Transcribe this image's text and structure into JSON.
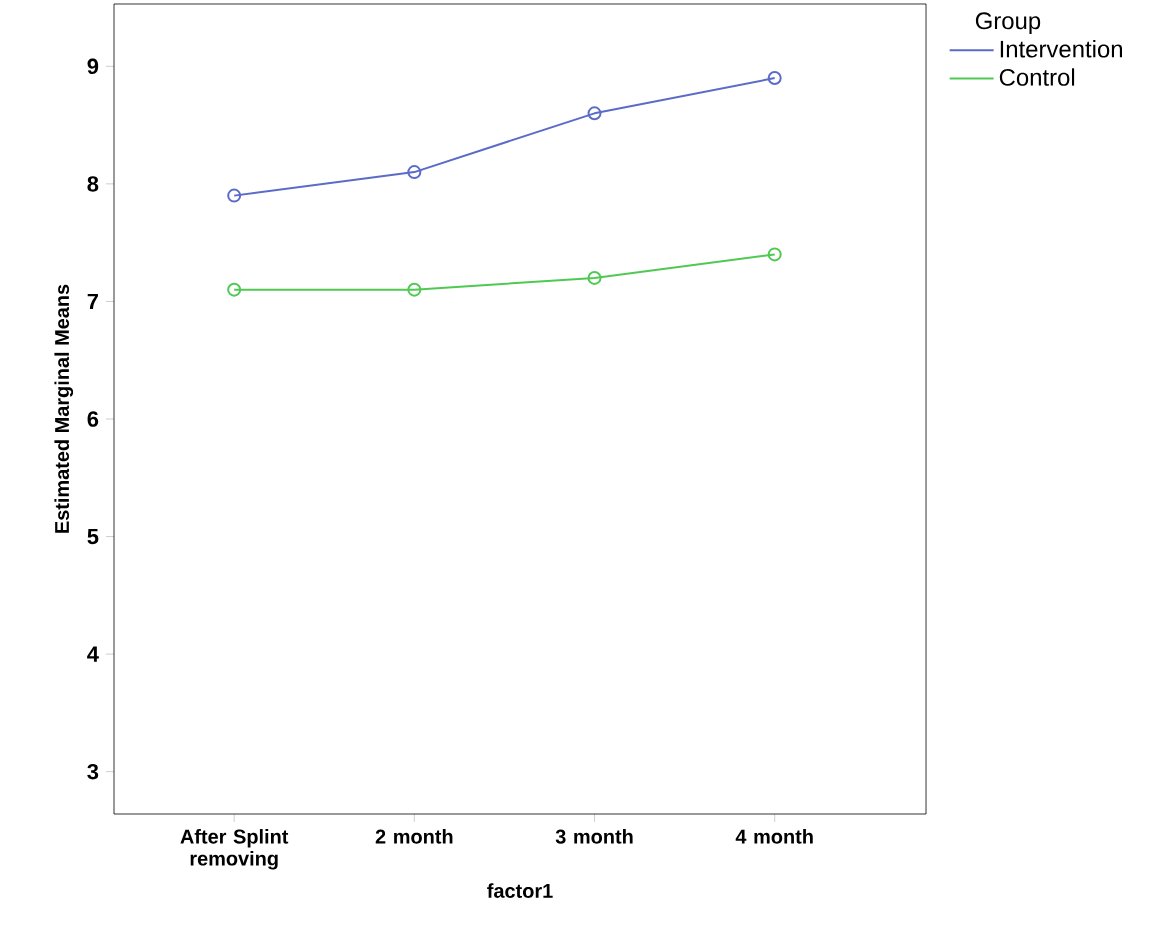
{
  "chart_data": {
    "type": "line",
    "xlabel": "factor1",
    "ylabel": "Estimated Marginal Means",
    "legend_title": "Group",
    "categories": [
      "After Splint removing",
      "2 month",
      "3 month",
      "4 month"
    ],
    "series": [
      {
        "name": "Intervention",
        "color": "#5a6bc8",
        "values": [
          7.9,
          8.1,
          8.6,
          8.9
        ]
      },
      {
        "name": "Control",
        "color": "#4fc952",
        "values": [
          7.1,
          7.1,
          7.2,
          7.4
        ]
      }
    ],
    "ylim": [
      2.64,
      9.53
    ],
    "yticks": [
      3,
      4,
      5,
      6,
      7,
      8,
      9
    ],
    "grid": false,
    "legend": "top right",
    "marker": "circle",
    "line_style": "solid"
  }
}
